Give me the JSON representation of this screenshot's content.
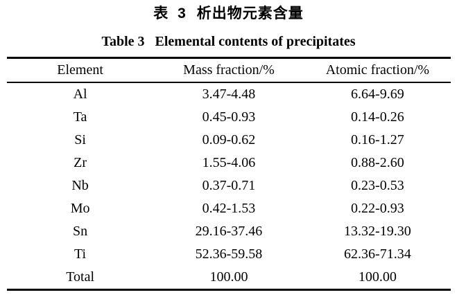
{
  "page": {
    "background_color": "#ffffff",
    "text_color": "#000000"
  },
  "caption": {
    "chinese_prefix": "表 3",
    "chinese_title": "析出物元素含量",
    "english_prefix": "Table 3",
    "english_title": "Elemental contents of precipitates"
  },
  "chart_data": {
    "type": "table",
    "title": "Table 3 Elemental contents of precipitates",
    "headers": [
      "Element",
      "Mass fraction/%",
      "Atomic fraction/%"
    ],
    "rows": [
      [
        "Al",
        "3.47-4.48",
        "6.64-9.69"
      ],
      [
        "Ta",
        "0.45-0.93",
        "0.14-0.26"
      ],
      [
        "Si",
        "0.09-0.62",
        "0.16-1.27"
      ],
      [
        "Zr",
        "1.55-4.06",
        "0.88-2.60"
      ],
      [
        "Nb",
        "0.37-0.71",
        "0.23-0.53"
      ],
      [
        "Mo",
        "0.42-1.53",
        "0.22-0.93"
      ],
      [
        "Sn",
        "29.16-37.46",
        "13.32-19.30"
      ],
      [
        "Ti",
        "52.36-59.58",
        "62.36-71.34"
      ],
      [
        "Total",
        "100.00",
        "100.00"
      ]
    ]
  }
}
